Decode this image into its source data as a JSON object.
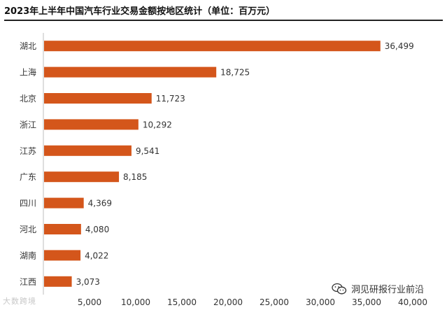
{
  "chart_data": {
    "type": "bar",
    "orientation": "horizontal",
    "title": "2023年上半年中国汽车行业交易金额按地区统计（单位：百万元）",
    "xlabel": "",
    "ylabel": "",
    "categories": [
      "湖北",
      "上海",
      "北京",
      "浙江",
      "江苏",
      "广东",
      "四川",
      "河北",
      "湖南",
      "江西"
    ],
    "values": [
      36499,
      18725,
      11723,
      10292,
      9541,
      8185,
      4369,
      4080,
      4022,
      3073
    ],
    "value_labels": [
      "36,499",
      "18,725",
      "11,723",
      "10,292",
      "9,541",
      "8,185",
      "4,369",
      "4,080",
      "4,022",
      "3,073"
    ],
    "xlim": [
      0,
      40000
    ],
    "xticks": [
      5000,
      10000,
      15000,
      20000,
      25000,
      30000,
      35000,
      40000
    ],
    "xtick_labels": [
      "5,000",
      "10,000",
      "15,000",
      "20,000",
      "25,000",
      "30,000",
      "35,000",
      "40,000"
    ],
    "bar_color": "#d4561b",
    "grid": false,
    "legend": "none"
  },
  "watermarks": {
    "left_text": "大数跨境",
    "right_text": "洞见研报行业前沿",
    "right_icon": "wechat-icon"
  }
}
